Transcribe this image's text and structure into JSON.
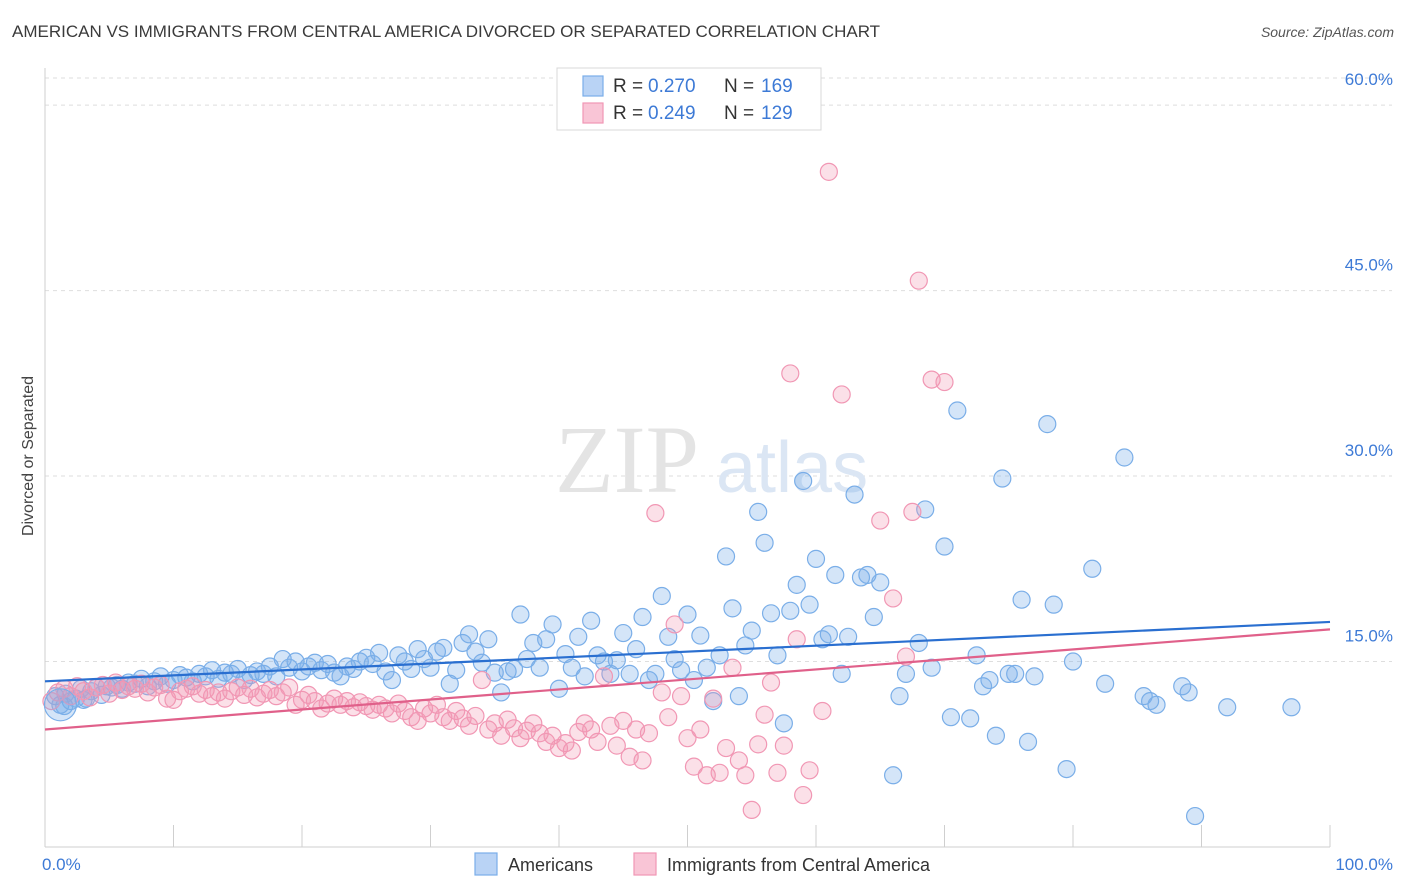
{
  "chart_data": {
    "type": "scatter",
    "title": "AMERICAN VS IMMIGRANTS FROM CENTRAL AMERICA DIVORCED OR SEPARATED CORRELATION CHART",
    "source": "Source: ZipAtlas.com",
    "watermark": {
      "part1": "ZIP",
      "part2": "atlas"
    },
    "ylabel": "Divorced or Separated",
    "xlabel": "",
    "xlim": [
      0,
      100
    ],
    "ylim": [
      0,
      63
    ],
    "x_tick_labels": {
      "min": "0.0%",
      "max": "100.0%"
    },
    "y_ticks": [
      {
        "value": 15,
        "label": "15.0%"
      },
      {
        "value": 30,
        "label": "30.0%"
      },
      {
        "value": 45,
        "label": "45.0%"
      },
      {
        "value": 60,
        "label": "60.0%"
      }
    ],
    "grid": true,
    "legend_stats": [
      {
        "r_label": "R =",
        "r_value": "0.270",
        "n_label": "N =",
        "n_value": "169"
      },
      {
        "r_label": "R =",
        "r_value": "0.249",
        "n_label": "N =",
        "n_value": "129"
      }
    ],
    "series": [
      {
        "name": "Americans",
        "color": "#7aaee8",
        "line_color": "#2a6fd0",
        "trend": {
          "x": [
            0,
            100
          ],
          "y": [
            13.4,
            18.2
          ]
        },
        "points": [
          [
            0.8,
            12.2
          ],
          [
            1.2,
            11.5
          ],
          [
            1.6,
            12.4
          ],
          [
            2.0,
            11.8
          ],
          [
            2.4,
            12.0
          ],
          [
            2.8,
            12.8
          ],
          [
            3.2,
            12.0
          ],
          [
            3.6,
            12.6
          ],
          [
            4.0,
            12.9
          ],
          [
            4.4,
            12.3
          ],
          [
            4.8,
            13.0
          ],
          [
            5.2,
            12.9
          ],
          [
            5.6,
            13.1
          ],
          [
            6.0,
            12.8
          ],
          [
            6.5,
            13.3
          ],
          [
            7.0,
            13.2
          ],
          [
            7.5,
            13.6
          ],
          [
            8.0,
            13.0
          ],
          [
            8.5,
            13.4
          ],
          [
            9.0,
            13.8
          ],
          [
            9.5,
            13.2
          ],
          [
            10.0,
            13.5
          ],
          [
            10.5,
            13.9
          ],
          [
            11.0,
            13.7
          ],
          [
            11.5,
            13.4
          ],
          [
            12.0,
            14.0
          ],
          [
            12.5,
            13.8
          ],
          [
            13.0,
            14.3
          ],
          [
            13.5,
            13.6
          ],
          [
            14.0,
            14.1
          ],
          [
            14.5,
            14.0
          ],
          [
            15.0,
            14.4
          ],
          [
            15.5,
            13.5
          ],
          [
            16.0,
            13.9
          ],
          [
            16.5,
            14.2
          ],
          [
            17.0,
            14.0
          ],
          [
            17.5,
            14.6
          ],
          [
            18.0,
            13.8
          ],
          [
            18.5,
            15.2
          ],
          [
            19.0,
            14.5
          ],
          [
            19.5,
            15.0
          ],
          [
            20.0,
            14.2
          ],
          [
            20.5,
            14.6
          ],
          [
            21.0,
            14.9
          ],
          [
            21.5,
            14.3
          ],
          [
            22.0,
            14.8
          ],
          [
            22.5,
            14.1
          ],
          [
            23.0,
            13.8
          ],
          [
            23.5,
            14.6
          ],
          [
            24.0,
            14.4
          ],
          [
            24.5,
            15.0
          ],
          [
            25.0,
            15.3
          ],
          [
            25.5,
            14.8
          ],
          [
            26.0,
            15.7
          ],
          [
            26.5,
            14.2
          ],
          [
            27.0,
            13.5
          ],
          [
            27.5,
            15.5
          ],
          [
            28.0,
            15.0
          ],
          [
            28.5,
            14.4
          ],
          [
            29.0,
            16.0
          ],
          [
            29.5,
            15.2
          ],
          [
            30.0,
            14.5
          ],
          [
            30.5,
            15.8
          ],
          [
            31.0,
            16.1
          ],
          [
            31.5,
            13.2
          ],
          [
            32.0,
            14.3
          ],
          [
            32.5,
            16.5
          ],
          [
            33.0,
            17.2
          ],
          [
            33.5,
            15.8
          ],
          [
            34.0,
            14.9
          ],
          [
            34.5,
            16.8
          ],
          [
            35.0,
            14.1
          ],
          [
            35.5,
            12.5
          ],
          [
            36.0,
            14.2
          ],
          [
            36.5,
            14.4
          ],
          [
            37.0,
            18.8
          ],
          [
            37.5,
            15.2
          ],
          [
            38.0,
            16.5
          ],
          [
            38.5,
            14.5
          ],
          [
            39.0,
            16.8
          ],
          [
            39.5,
            18.0
          ],
          [
            40.0,
            12.8
          ],
          [
            40.5,
            15.6
          ],
          [
            41.0,
            14.5
          ],
          [
            41.5,
            17.0
          ],
          [
            42.0,
            13.8
          ],
          [
            42.5,
            18.3
          ],
          [
            43.0,
            15.5
          ],
          [
            43.5,
            15.0
          ],
          [
            44.0,
            14.0
          ],
          [
            44.5,
            15.1
          ],
          [
            45.0,
            17.3
          ],
          [
            45.5,
            14.0
          ],
          [
            46.0,
            16.0
          ],
          [
            46.5,
            18.6
          ],
          [
            47.0,
            13.5
          ],
          [
            47.5,
            14.0
          ],
          [
            48.0,
            20.3
          ],
          [
            48.5,
            17.0
          ],
          [
            49.0,
            15.2
          ],
          [
            49.5,
            14.3
          ],
          [
            50.0,
            18.8
          ],
          [
            50.5,
            13.5
          ],
          [
            51.0,
            17.1
          ],
          [
            51.5,
            14.5
          ],
          [
            52.0,
            11.8
          ],
          [
            52.5,
            15.5
          ],
          [
            53.0,
            23.5
          ],
          [
            53.5,
            19.3
          ],
          [
            54.0,
            12.2
          ],
          [
            54.5,
            16.3
          ],
          [
            55.0,
            17.5
          ],
          [
            55.5,
            27.1
          ],
          [
            56.0,
            24.6
          ],
          [
            56.5,
            18.9
          ],
          [
            57.0,
            15.5
          ],
          [
            57.5,
            10.0
          ],
          [
            58.0,
            19.1
          ],
          [
            58.5,
            21.2
          ],
          [
            59.0,
            29.6
          ],
          [
            59.5,
            19.6
          ],
          [
            60.0,
            23.3
          ],
          [
            60.5,
            16.8
          ],
          [
            61.0,
            17.2
          ],
          [
            61.5,
            22.0
          ],
          [
            62.0,
            14.0
          ],
          [
            62.5,
            17.0
          ],
          [
            63.0,
            28.5
          ],
          [
            63.5,
            21.8
          ],
          [
            64.0,
            22.0
          ],
          [
            64.5,
            18.6
          ],
          [
            65.0,
            21.4
          ],
          [
            66.0,
            5.8
          ],
          [
            66.5,
            12.2
          ],
          [
            67.0,
            14.0
          ],
          [
            68.0,
            16.5
          ],
          [
            68.5,
            27.3
          ],
          [
            69.0,
            14.5
          ],
          [
            70.0,
            24.3
          ],
          [
            70.5,
            10.5
          ],
          [
            71.0,
            35.3
          ],
          [
            72.0,
            10.4
          ],
          [
            72.5,
            15.5
          ],
          [
            73.0,
            13.0
          ],
          [
            73.5,
            13.5
          ],
          [
            74.0,
            9.0
          ],
          [
            74.5,
            29.8
          ],
          [
            75.0,
            14.0
          ],
          [
            75.5,
            14.0
          ],
          [
            76.0,
            20.0
          ],
          [
            76.5,
            8.5
          ],
          [
            77.0,
            13.8
          ],
          [
            78.0,
            34.2
          ],
          [
            78.5,
            19.6
          ],
          [
            79.5,
            6.3
          ],
          [
            80.0,
            15.0
          ],
          [
            81.5,
            22.5
          ],
          [
            82.5,
            13.2
          ],
          [
            84.0,
            31.5
          ],
          [
            85.5,
            12.2
          ],
          [
            86.0,
            11.8
          ],
          [
            86.5,
            11.5
          ],
          [
            88.5,
            13.0
          ],
          [
            89.0,
            12.5
          ],
          [
            89.5,
            2.5
          ],
          [
            92.0,
            11.3
          ],
          [
            97.0,
            11.3
          ],
          [
            1.5,
            11.4
          ],
          [
            3.0,
            11.9
          ]
        ]
      },
      {
        "name": "Immigrants from Central America",
        "color": "#f197b4",
        "line_color": "#e0608a",
        "trend": {
          "x": [
            0,
            100
          ],
          "y": [
            9.5,
            17.6
          ]
        },
        "points": [
          [
            0.5,
            11.8
          ],
          [
            1.0,
            12.5
          ],
          [
            1.5,
            12.8
          ],
          [
            2.0,
            12.2
          ],
          [
            2.5,
            13.0
          ],
          [
            3.0,
            12.6
          ],
          [
            3.5,
            12.1
          ],
          [
            4.0,
            12.9
          ],
          [
            4.5,
            13.1
          ],
          [
            5.0,
            12.4
          ],
          [
            5.5,
            13.3
          ],
          [
            6.0,
            12.7
          ],
          [
            6.5,
            13.0
          ],
          [
            7.0,
            12.8
          ],
          [
            7.5,
            13.2
          ],
          [
            8.0,
            12.5
          ],
          [
            8.5,
            12.9
          ],
          [
            9.0,
            13.1
          ],
          [
            9.5,
            12.0
          ],
          [
            10.0,
            11.9
          ],
          [
            10.5,
            12.6
          ],
          [
            11.0,
            12.8
          ],
          [
            11.5,
            13.0
          ],
          [
            12.0,
            12.4
          ],
          [
            12.5,
            12.7
          ],
          [
            13.0,
            12.2
          ],
          [
            13.5,
            12.5
          ],
          [
            14.0,
            12.0
          ],
          [
            14.5,
            12.6
          ],
          [
            15.0,
            12.9
          ],
          [
            15.5,
            12.3
          ],
          [
            16.0,
            12.8
          ],
          [
            16.5,
            12.1
          ],
          [
            17.0,
            12.4
          ],
          [
            17.5,
            12.7
          ],
          [
            18.0,
            12.2
          ],
          [
            18.5,
            12.5
          ],
          [
            19.0,
            12.9
          ],
          [
            19.5,
            11.5
          ],
          [
            20.0,
            11.9
          ],
          [
            20.5,
            12.3
          ],
          [
            21.0,
            11.8
          ],
          [
            21.5,
            11.2
          ],
          [
            22.0,
            11.6
          ],
          [
            22.5,
            12.0
          ],
          [
            23.0,
            11.5
          ],
          [
            23.5,
            11.8
          ],
          [
            24.0,
            11.3
          ],
          [
            24.5,
            11.7
          ],
          [
            25.0,
            11.4
          ],
          [
            25.5,
            11.1
          ],
          [
            26.0,
            11.5
          ],
          [
            26.5,
            11.2
          ],
          [
            27.0,
            10.8
          ],
          [
            27.5,
            11.6
          ],
          [
            28.0,
            11.0
          ],
          [
            28.5,
            10.5
          ],
          [
            29.0,
            10.2
          ],
          [
            29.5,
            11.2
          ],
          [
            30.0,
            10.8
          ],
          [
            30.5,
            11.5
          ],
          [
            31.0,
            10.5
          ],
          [
            31.5,
            10.2
          ],
          [
            32.0,
            11.0
          ],
          [
            32.5,
            10.4
          ],
          [
            33.0,
            9.8
          ],
          [
            33.5,
            10.6
          ],
          [
            34.0,
            13.5
          ],
          [
            34.5,
            9.5
          ],
          [
            35.0,
            10.0
          ],
          [
            35.5,
            9.0
          ],
          [
            36.0,
            10.3
          ],
          [
            36.5,
            9.6
          ],
          [
            37.0,
            8.8
          ],
          [
            37.5,
            9.4
          ],
          [
            38.0,
            10.0
          ],
          [
            38.5,
            9.2
          ],
          [
            39.0,
            8.5
          ],
          [
            39.5,
            9.0
          ],
          [
            40.0,
            8.0
          ],
          [
            40.5,
            8.4
          ],
          [
            41.0,
            7.8
          ],
          [
            41.5,
            9.3
          ],
          [
            42.0,
            10.0
          ],
          [
            42.5,
            9.5
          ],
          [
            43.0,
            8.5
          ],
          [
            43.5,
            13.8
          ],
          [
            44.0,
            9.8
          ],
          [
            44.5,
            8.2
          ],
          [
            45.0,
            10.2
          ],
          [
            45.5,
            7.3
          ],
          [
            46.0,
            9.5
          ],
          [
            46.5,
            7.0
          ],
          [
            47.0,
            9.2
          ],
          [
            47.5,
            27.0
          ],
          [
            48.0,
            12.5
          ],
          [
            48.5,
            10.5
          ],
          [
            49.0,
            18.0
          ],
          [
            49.5,
            12.2
          ],
          [
            50.0,
            8.8
          ],
          [
            50.5,
            6.5
          ],
          [
            51.0,
            9.5
          ],
          [
            51.5,
            5.8
          ],
          [
            52.0,
            12.0
          ],
          [
            52.5,
            6.0
          ],
          [
            53.0,
            8.0
          ],
          [
            53.5,
            14.5
          ],
          [
            54.0,
            7.0
          ],
          [
            54.5,
            5.8
          ],
          [
            55.0,
            3.0
          ],
          [
            55.5,
            8.3
          ],
          [
            56.0,
            10.7
          ],
          [
            56.5,
            13.3
          ],
          [
            57.0,
            6.0
          ],
          [
            57.5,
            8.2
          ],
          [
            58.0,
            38.3
          ],
          [
            58.5,
            16.8
          ],
          [
            59.0,
            4.2
          ],
          [
            59.5,
            6.2
          ],
          [
            60.5,
            11.0
          ],
          [
            61.0,
            54.6
          ],
          [
            62.0,
            36.6
          ],
          [
            65.0,
            26.4
          ],
          [
            66.0,
            20.1
          ],
          [
            67.0,
            15.4
          ],
          [
            68.0,
            45.8
          ],
          [
            69.0,
            37.8
          ],
          [
            70.0,
            37.6
          ],
          [
            67.5,
            27.1
          ]
        ]
      }
    ]
  }
}
